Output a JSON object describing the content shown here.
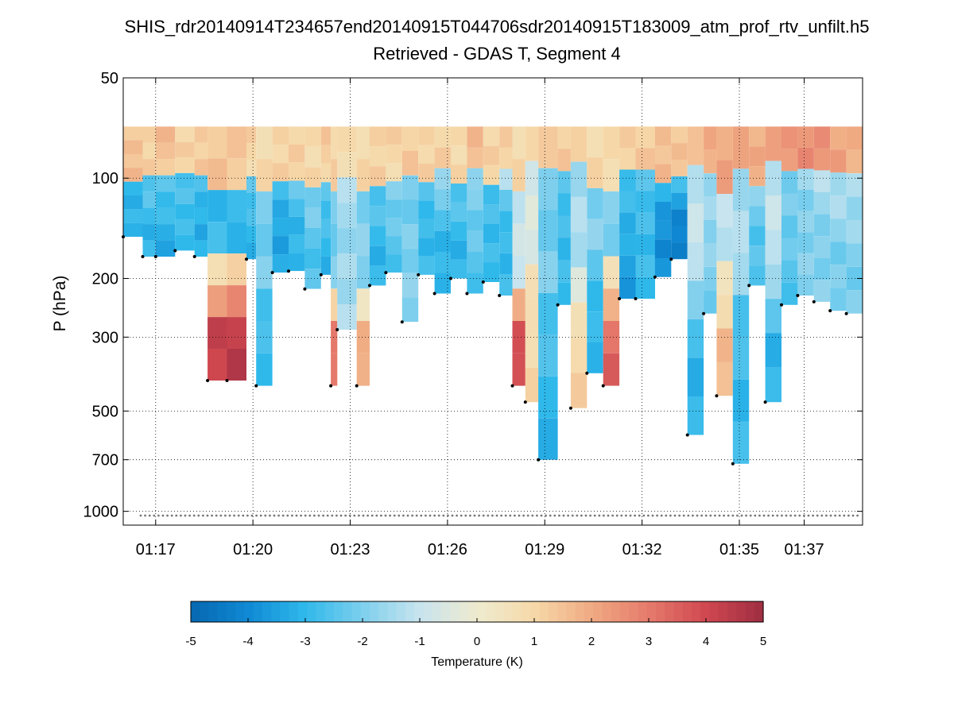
{
  "chart_data": {
    "type": "heatmap",
    "title": "SHIS_rdr20140914T234657end20140915T044706sdr20140915T183009_atm_prof_rtv_unfilt.h5",
    "subtitle": "Retrieved - GDAS T, Segment 4",
    "ylabel": "P (hPa)",
    "xlabel": "",
    "x_range": [
      "01:16",
      "01:38"
    ],
    "x_range_minutes": [
      76.0,
      98.8
    ],
    "x_ticks": [
      {
        "label": "01:17",
        "minutes": 77
      },
      {
        "label": "01:20",
        "minutes": 80
      },
      {
        "label": "01:23",
        "minutes": 83
      },
      {
        "label": "01:26",
        "minutes": 86
      },
      {
        "label": "01:29",
        "minutes": 89
      },
      {
        "label": "01:32",
        "minutes": 92
      },
      {
        "label": "01:35",
        "minutes": 95
      },
      {
        "label": "01:37",
        "minutes": 97
      }
    ],
    "y_scale": "log",
    "y_reversed": true,
    "ylim": [
      50,
      1100
    ],
    "y_ticks": [
      {
        "label": "50",
        "value": 50
      },
      {
        "label": "100",
        "value": 100
      },
      {
        "label": "200",
        "value": 200
      },
      {
        "label": "300",
        "value": 300
      },
      {
        "label": "500",
        "value": 500
      },
      {
        "label": "700",
        "value": 700
      },
      {
        "label": "1000",
        "value": 1000
      }
    ],
    "grid": true,
    "colorbar": {
      "label": "Temperature (K)",
      "range": [
        -5,
        5
      ],
      "ticks": [
        "-5",
        "-4",
        "-3",
        "-2",
        "-1",
        "0",
        "1",
        "2",
        "3",
        "4",
        "5"
      ]
    },
    "profile_pressure_range": [
      70,
      120
    ],
    "columns": [
      {
        "x": 76.0,
        "top": 70,
        "bottom": 150,
        "low": 101,
        "v_upper": 1.5,
        "v_mid": -3.0,
        "v_low": -3.0
      },
      {
        "x": 76.6,
        "top": 70,
        "bottom": 172,
        "low": 101,
        "v_upper": 1.2,
        "v_mid": -2.0,
        "v_low": -3.0
      },
      {
        "x": 77.0,
        "top": 70,
        "bottom": 172,
        "low": 101,
        "v_upper": 1.5,
        "v_mid": -2.0,
        "v_low": -3.2
      },
      {
        "x": 77.6,
        "top": 70,
        "bottom": 165,
        "low": 101,
        "v_upper": 1.0,
        "v_mid": -2.0,
        "v_low": -3.0
      },
      {
        "x": 78.2,
        "top": 70,
        "bottom": 172,
        "low": 101,
        "v_upper": 1.2,
        "v_mid": -2.0,
        "v_low": -3.3
      },
      {
        "x": 78.6,
        "top": 70,
        "bottom": 405,
        "low": 170,
        "v_upper": 1.5,
        "v_mid": -3.0,
        "v_low": 4.2
      },
      {
        "x": 79.2,
        "top": 70,
        "bottom": 405,
        "low": 170,
        "v_upper": 1.5,
        "v_mid": -3.0,
        "v_low": 4.5
      },
      {
        "x": 79.8,
        "top": 70,
        "bottom": 175,
        "low": 101,
        "v_upper": 1.0,
        "v_mid": -2.0,
        "v_low": -3.0
      },
      {
        "x": 80.1,
        "top": 70,
        "bottom": 420,
        "low": 200,
        "v_upper": 0.8,
        "v_mid": -2.0,
        "v_low": -3.0
      },
      {
        "x": 80.6,
        "top": 70,
        "bottom": 192,
        "low": 101,
        "v_upper": 1.0,
        "v_mid": -2.0,
        "v_low": -3.5
      },
      {
        "x": 81.1,
        "top": 70,
        "bottom": 190,
        "low": 101,
        "v_upper": 1.2,
        "v_mid": -2.0,
        "v_low": -3.0
      },
      {
        "x": 81.6,
        "top": 70,
        "bottom": 215,
        "low": 101,
        "v_upper": 1.0,
        "v_mid": -1.5,
        "v_low": -2.5
      },
      {
        "x": 82.1,
        "top": 70,
        "bottom": 195,
        "low": 101,
        "v_upper": 1.2,
        "v_mid": -2.0,
        "v_low": -3.0
      },
      {
        "x": 82.4,
        "top": 70,
        "bottom": 420,
        "low": 200,
        "v_upper": 1.0,
        "v_mid": -2.0,
        "v_low": 3.0
      },
      {
        "x": 82.6,
        "top": 70,
        "bottom": 285,
        "low": 101,
        "v_upper": 0.8,
        "v_mid": -1.5,
        "v_low": -1.5
      },
      {
        "x": 83.2,
        "top": 70,
        "bottom": 420,
        "low": 200,
        "v_upper": 1.0,
        "v_mid": -2.0,
        "v_low": 2.0
      },
      {
        "x": 83.6,
        "top": 70,
        "bottom": 210,
        "low": 101,
        "v_upper": 1.2,
        "v_mid": -2.0,
        "v_low": -3.0
      },
      {
        "x": 84.1,
        "top": 70,
        "bottom": 192,
        "low": 101,
        "v_upper": 1.0,
        "v_mid": -1.5,
        "v_low": -2.5
      },
      {
        "x": 84.6,
        "top": 70,
        "bottom": 270,
        "low": 101,
        "v_upper": 1.2,
        "v_mid": -2.0,
        "v_low": -2.0
      },
      {
        "x": 85.1,
        "top": 70,
        "bottom": 195,
        "low": 101,
        "v_upper": 1.0,
        "v_mid": -2.0,
        "v_low": -3.0
      },
      {
        "x": 85.6,
        "top": 70,
        "bottom": 222,
        "low": 101,
        "v_upper": 1.2,
        "v_mid": -1.5,
        "v_low": -3.0
      },
      {
        "x": 86.1,
        "top": 70,
        "bottom": 200,
        "low": 101,
        "v_upper": 1.0,
        "v_mid": -2.0,
        "v_low": -3.0
      },
      {
        "x": 86.6,
        "top": 70,
        "bottom": 222,
        "low": 101,
        "v_upper": 1.5,
        "v_mid": -1.5,
        "v_low": -2.5
      },
      {
        "x": 87.1,
        "top": 70,
        "bottom": 205,
        "low": 101,
        "v_upper": 1.0,
        "v_mid": -2.0,
        "v_low": -3.0
      },
      {
        "x": 87.6,
        "top": 70,
        "bottom": 225,
        "low": 101,
        "v_upper": 1.2,
        "v_mid": -1.5,
        "v_low": -3.0
      },
      {
        "x": 88.0,
        "top": 70,
        "bottom": 420,
        "low": 200,
        "v_upper": 1.0,
        "v_mid": -1.0,
        "v_low": 4.0
      },
      {
        "x": 88.4,
        "top": 70,
        "bottom": 470,
        "low": 170,
        "v_upper": 1.0,
        "v_mid": -0.5,
        "v_low": 1.0
      },
      {
        "x": 88.8,
        "top": 70,
        "bottom": 700,
        "low": 200,
        "v_upper": 1.0,
        "v_mid": -2.0,
        "v_low": -3.0
      },
      {
        "x": 89.4,
        "top": 70,
        "bottom": 240,
        "low": 101,
        "v_upper": 1.2,
        "v_mid": -2.0,
        "v_low": -3.0
      },
      {
        "x": 89.8,
        "top": 70,
        "bottom": 490,
        "low": 180,
        "v_upper": 1.0,
        "v_mid": -1.5,
        "v_low": 1.0
      },
      {
        "x": 90.3,
        "top": 70,
        "bottom": 385,
        "low": 180,
        "v_upper": 1.0,
        "v_mid": -2.0,
        "v_low": -3.0
      },
      {
        "x": 90.8,
        "top": 70,
        "bottom": 420,
        "low": 190,
        "v_upper": 1.0,
        "v_mid": -2.0,
        "v_low": 3.5
      },
      {
        "x": 91.3,
        "top": 70,
        "bottom": 230,
        "low": 101,
        "v_upper": 1.0,
        "v_mid": -2.0,
        "v_low": -3.5
      },
      {
        "x": 91.8,
        "top": 70,
        "bottom": 230,
        "low": 101,
        "v_upper": 1.2,
        "v_mid": -2.0,
        "v_low": -3.0
      },
      {
        "x": 92.4,
        "top": 70,
        "bottom": 198,
        "low": 101,
        "v_upper": 1.5,
        "v_mid": -2.0,
        "v_low": -4.0
      },
      {
        "x": 92.9,
        "top": 70,
        "bottom": 175,
        "low": 101,
        "v_upper": 1.5,
        "v_mid": -2.0,
        "v_low": -4.2
      },
      {
        "x": 93.4,
        "top": 70,
        "bottom": 590,
        "low": 180,
        "v_upper": 1.5,
        "v_mid": -1.0,
        "v_low": -3.0
      },
      {
        "x": 93.9,
        "top": 70,
        "bottom": 255,
        "low": 101,
        "v_upper": 1.8,
        "v_mid": -1.0,
        "v_low": -2.0
      },
      {
        "x": 94.3,
        "top": 70,
        "bottom": 450,
        "low": 180,
        "v_upper": 2.0,
        "v_mid": -1.0,
        "v_low": 1.5
      },
      {
        "x": 94.8,
        "top": 70,
        "bottom": 720,
        "low": 200,
        "v_upper": 2.0,
        "v_mid": -1.5,
        "v_low": -3.0
      },
      {
        "x": 95.3,
        "top": 70,
        "bottom": 210,
        "low": 101,
        "v_upper": 2.0,
        "v_mid": -1.5,
        "v_low": -2.5
      },
      {
        "x": 95.8,
        "top": 70,
        "bottom": 470,
        "low": 200,
        "v_upper": 2.2,
        "v_mid": -1.0,
        "v_low": -3.0
      },
      {
        "x": 96.3,
        "top": 70,
        "bottom": 240,
        "low": 101,
        "v_upper": 2.2,
        "v_mid": -1.5,
        "v_low": -2.5
      },
      {
        "x": 96.8,
        "top": 70,
        "bottom": 225,
        "low": 101,
        "v_upper": 2.5,
        "v_mid": -1.5,
        "v_low": -2.0
      },
      {
        "x": 97.3,
        "top": 70,
        "bottom": 235,
        "low": 101,
        "v_upper": 2.5,
        "v_mid": -1.0,
        "v_low": -2.0
      },
      {
        "x": 97.8,
        "top": 70,
        "bottom": 250,
        "low": 101,
        "v_upper": 2.2,
        "v_mid": -1.0,
        "v_low": -2.0
      },
      {
        "x": 98.3,
        "top": 70,
        "bottom": 255,
        "low": 101,
        "v_upper": 2.0,
        "v_mid": -1.0,
        "v_low": -2.0
      }
    ],
    "surface_marker_pressure": 1030
  }
}
